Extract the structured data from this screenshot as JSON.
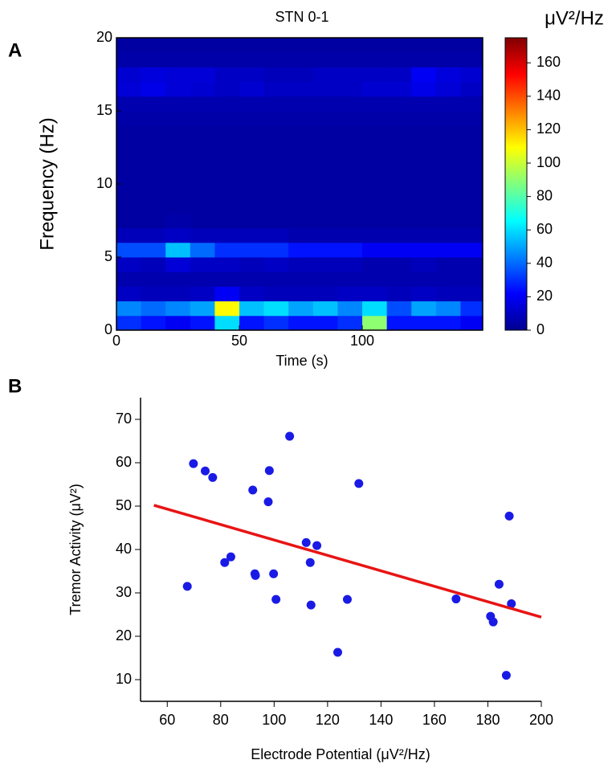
{
  "chart_data": [
    {
      "type": "heatmap",
      "panel_label": "A",
      "title": "STN 0-1",
      "x_label": "Time (s)",
      "y_label": "Frequency (Hz)",
      "x_bins": [
        0,
        10,
        20,
        30,
        40,
        50,
        60,
        70,
        80,
        90,
        100,
        110,
        120,
        130,
        140,
        149
      ],
      "y_bins": [
        0,
        1,
        2,
        3,
        4,
        5,
        6,
        7,
        8,
        9,
        10,
        11,
        12,
        13,
        14,
        15,
        16,
        17,
        18,
        19,
        20
      ],
      "z": [
        [
          30,
          25,
          20,
          25,
          60,
          25,
          30,
          25,
          25,
          30,
          90,
          25,
          25,
          25,
          20
        ],
        [
          45,
          40,
          45,
          50,
          110,
          55,
          60,
          50,
          55,
          45,
          60,
          35,
          50,
          45,
          30
        ],
        [
          12,
          10,
          10,
          12,
          20,
          12,
          10,
          10,
          10,
          12,
          12,
          10,
          12,
          10,
          10
        ],
        [
          8,
          8,
          8,
          8,
          8,
          8,
          8,
          8,
          8,
          8,
          8,
          8,
          8,
          8,
          8
        ],
        [
          12,
          10,
          15,
          12,
          12,
          10,
          12,
          10,
          10,
          10,
          8,
          8,
          10,
          8,
          8
        ],
        [
          35,
          35,
          55,
          40,
          30,
          30,
          30,
          25,
          25,
          25,
          20,
          20,
          20,
          20,
          20
        ],
        [
          10,
          10,
          12,
          10,
          10,
          10,
          10,
          8,
          8,
          8,
          8,
          8,
          8,
          8,
          8
        ],
        [
          6,
          6,
          7,
          6,
          6,
          6,
          6,
          6,
          6,
          6,
          6,
          6,
          6,
          6,
          6
        ],
        [
          6,
          6,
          6,
          6,
          6,
          6,
          6,
          6,
          6,
          6,
          6,
          6,
          6,
          6,
          6
        ],
        [
          6,
          6,
          6,
          6,
          6,
          6,
          6,
          6,
          6,
          6,
          6,
          6,
          6,
          6,
          6
        ],
        [
          6,
          6,
          6,
          6,
          6,
          6,
          6,
          6,
          6,
          6,
          6,
          6,
          6,
          6,
          6
        ],
        [
          6,
          6,
          6,
          6,
          6,
          6,
          6,
          6,
          6,
          6,
          6,
          6,
          6,
          6,
          6
        ],
        [
          6,
          6,
          6,
          6,
          6,
          6,
          6,
          6,
          6,
          6,
          6,
          6,
          6,
          6,
          6
        ],
        [
          6,
          6,
          6,
          6,
          6,
          6,
          6,
          6,
          6,
          6,
          6,
          6,
          6,
          6,
          6
        ],
        [
          7,
          7,
          7,
          7,
          7,
          7,
          7,
          7,
          7,
          7,
          7,
          7,
          7,
          7,
          7
        ],
        [
          8,
          8,
          8,
          8,
          8,
          8,
          8,
          8,
          8,
          8,
          8,
          8,
          8,
          8,
          8
        ],
        [
          15,
          18,
          15,
          14,
          12,
          14,
          12,
          12,
          12,
          12,
          14,
          14,
          18,
          15,
          12
        ],
        [
          14,
          16,
          15,
          15,
          12,
          12,
          10,
          10,
          12,
          12,
          12,
          12,
          20,
          16,
          14
        ],
        [
          7,
          7,
          7,
          7,
          7,
          7,
          7,
          7,
          7,
          7,
          7,
          7,
          7,
          7,
          7
        ],
        [
          6,
          6,
          6,
          6,
          6,
          6,
          6,
          6,
          6,
          6,
          6,
          6,
          6,
          6,
          6
        ]
      ],
      "colormap": "jet",
      "xlim": [
        0,
        149
      ],
      "ylim": [
        0,
        20
      ],
      "xticks": [
        0,
        50,
        100
      ],
      "yticks": [
        0,
        5,
        10,
        15,
        20
      ],
      "colorbar_label": "μV²/Hz",
      "clim": [
        0,
        175
      ],
      "colorbar_ticks": [
        0,
        20,
        40,
        60,
        80,
        100,
        120,
        140,
        160
      ]
    },
    {
      "type": "scatter",
      "panel_label": "B",
      "x_label": "Electrode Potential (μV²/Hz)",
      "y_label": "Tremor Activity (μV²)",
      "xlim": [
        50,
        200
      ],
      "ylim": [
        5,
        75
      ],
      "xticks": [
        60,
        80,
        100,
        120,
        140,
        160,
        180,
        200
      ],
      "yticks": [
        10,
        20,
        30,
        40,
        50,
        60,
        70
      ],
      "series": [
        {
          "mode": "markers",
          "color": "#1a1ae6",
          "x": [
            67.5,
            69.8,
            74.2,
            77,
            81.5,
            83.8,
            92,
            92.8,
            93,
            98.2,
            97.8,
            99.8,
            100.7,
            105.8,
            112,
            113.5,
            113.8,
            116,
            123.8,
            127.4,
            131.7,
            168.1,
            181,
            182,
            184.2,
            186.9,
            188,
            188.8
          ],
          "y": [
            31.5,
            59.8,
            58.1,
            56.6,
            37,
            38.3,
            53.7,
            34.4,
            34,
            58.2,
            51,
            34.4,
            28.5,
            66.1,
            41.6,
            37,
            27.2,
            40.9,
            16.3,
            28.5,
            55.2,
            28.6,
            24.6,
            23.3,
            32,
            11,
            47.7,
            27.5
          ]
        },
        {
          "mode": "line",
          "color": "#e81414",
          "x": [
            55,
            200
          ],
          "y": [
            50.2,
            24.4
          ]
        }
      ]
    }
  ]
}
